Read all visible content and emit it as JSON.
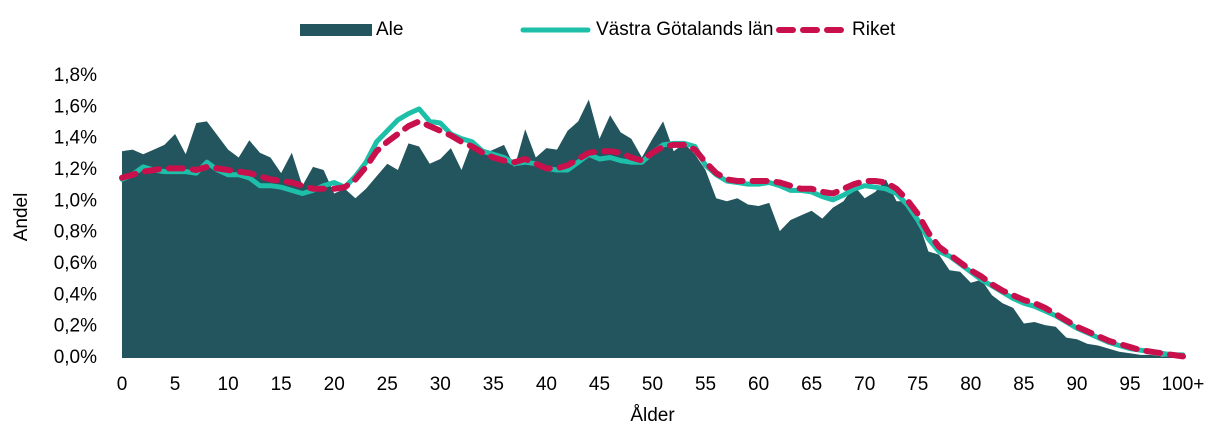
{
  "chart_data": {
    "type": "line",
    "x_label": "Ålder",
    "y_label": "Andel",
    "categories": [
      "0",
      null,
      null,
      null,
      null,
      "5",
      null,
      null,
      null,
      null,
      "10",
      null,
      null,
      null,
      null,
      "15",
      null,
      null,
      null,
      null,
      "20",
      null,
      null,
      null,
      null,
      "25",
      null,
      null,
      null,
      null,
      "30",
      null,
      null,
      null,
      null,
      "35",
      null,
      null,
      null,
      null,
      "40",
      null,
      null,
      null,
      null,
      "45",
      null,
      null,
      null,
      null,
      "50",
      null,
      null,
      null,
      null,
      "55",
      null,
      null,
      null,
      null,
      "60",
      null,
      null,
      null,
      null,
      "65",
      null,
      null,
      null,
      null,
      "70",
      null,
      null,
      null,
      null,
      "75",
      null,
      null,
      null,
      null,
      "80",
      null,
      null,
      null,
      null,
      "85",
      null,
      null,
      null,
      null,
      "90",
      null,
      null,
      null,
      null,
      "95",
      null,
      null,
      null,
      null,
      "100+"
    ],
    "ylim": [
      0,
      1.8
    ],
    "yticks": [
      {
        "value": 0,
        "label": "0,0%"
      },
      {
        "value": 0.2,
        "label": "0,2%"
      },
      {
        "value": 0.4,
        "label": "0,4%"
      },
      {
        "value": 0.6,
        "label": "0,6%"
      },
      {
        "value": 0.8,
        "label": "0,8%"
      },
      {
        "value": 1.0,
        "label": "1,0%"
      },
      {
        "value": 1.2,
        "label": "1,2%"
      },
      {
        "value": 1.4,
        "label": "1,4%"
      },
      {
        "value": 1.6,
        "label": "1,6%"
      },
      {
        "value": 1.8,
        "label": "1,8%"
      }
    ],
    "legend": "top",
    "series": [
      {
        "name": "Ale",
        "type": "area",
        "color": "#23555e",
        "values": [
          1.32,
          1.33,
          1.3,
          1.33,
          1.36,
          1.43,
          1.3,
          1.5,
          1.51,
          1.42,
          1.33,
          1.28,
          1.39,
          1.31,
          1.28,
          1.18,
          1.31,
          1.1,
          1.22,
          1.2,
          1.05,
          1.08,
          1.02,
          1.08,
          1.16,
          1.24,
          1.2,
          1.37,
          1.35,
          1.24,
          1.27,
          1.34,
          1.2,
          1.38,
          1.3,
          1.33,
          1.36,
          1.22,
          1.46,
          1.28,
          1.34,
          1.33,
          1.45,
          1.51,
          1.65,
          1.4,
          1.55,
          1.44,
          1.4,
          1.28,
          1.4,
          1.51,
          1.32,
          1.37,
          1.3,
          1.2,
          1.02,
          1.0,
          1.02,
          0.98,
          0.97,
          0.99,
          0.81,
          0.88,
          0.91,
          0.94,
          0.89,
          0.96,
          1.0,
          1.1,
          1.02,
          1.06,
          1.14,
          1.0,
          1.0,
          0.88,
          0.68,
          0.66,
          0.56,
          0.55,
          0.48,
          0.5,
          0.4,
          0.35,
          0.32,
          0.22,
          0.23,
          0.21,
          0.2,
          0.13,
          0.12,
          0.09,
          0.08,
          0.06,
          0.04,
          0.03,
          0.02,
          0.02,
          0.01,
          0.01,
          0.02
        ]
      },
      {
        "name": "Västra Götalands län",
        "type": "line",
        "color": "#1dbfa8",
        "values": [
          1.14,
          1.17,
          1.22,
          1.2,
          1.19,
          1.19,
          1.19,
          1.18,
          1.25,
          1.2,
          1.17,
          1.17,
          1.15,
          1.1,
          1.1,
          1.09,
          1.07,
          1.05,
          1.07,
          1.1,
          1.12,
          1.09,
          1.16,
          1.25,
          1.38,
          1.45,
          1.52,
          1.56,
          1.59,
          1.51,
          1.5,
          1.43,
          1.4,
          1.38,
          1.32,
          1.3,
          1.28,
          1.24,
          1.25,
          1.24,
          1.21,
          1.2,
          1.2,
          1.25,
          1.3,
          1.27,
          1.28,
          1.26,
          1.25,
          1.25,
          1.31,
          1.36,
          1.37,
          1.37,
          1.35,
          1.23,
          1.17,
          1.13,
          1.12,
          1.11,
          1.11,
          1.12,
          1.1,
          1.07,
          1.07,
          1.06,
          1.03,
          1.01,
          1.04,
          1.08,
          1.1,
          1.09,
          1.08,
          1.05,
          0.98,
          0.88,
          0.76,
          0.68,
          0.65,
          0.6,
          0.55,
          0.5,
          0.46,
          0.42,
          0.38,
          0.35,
          0.33,
          0.3,
          0.27,
          0.23,
          0.19,
          0.16,
          0.13,
          0.1,
          0.08,
          0.06,
          0.05,
          0.04,
          0.03,
          0.02,
          0.02
        ]
      },
      {
        "name": "Riket",
        "type": "line",
        "dashed": true,
        "color": "#c8104d",
        "values": [
          1.15,
          1.17,
          1.19,
          1.2,
          1.21,
          1.21,
          1.21,
          1.2,
          1.22,
          1.21,
          1.2,
          1.19,
          1.18,
          1.16,
          1.14,
          1.13,
          1.12,
          1.1,
          1.08,
          1.08,
          1.08,
          1.09,
          1.14,
          1.22,
          1.32,
          1.38,
          1.43,
          1.48,
          1.51,
          1.48,
          1.45,
          1.42,
          1.38,
          1.35,
          1.31,
          1.28,
          1.26,
          1.25,
          1.27,
          1.24,
          1.21,
          1.21,
          1.23,
          1.27,
          1.31,
          1.32,
          1.32,
          1.31,
          1.28,
          1.26,
          1.31,
          1.35,
          1.36,
          1.36,
          1.33,
          1.25,
          1.18,
          1.14,
          1.13,
          1.13,
          1.13,
          1.13,
          1.12,
          1.1,
          1.08,
          1.08,
          1.06,
          1.05,
          1.08,
          1.11,
          1.13,
          1.13,
          1.12,
          1.08,
          1.01,
          0.92,
          0.8,
          0.71,
          0.66,
          0.61,
          0.56,
          0.52,
          0.47,
          0.43,
          0.4,
          0.37,
          0.35,
          0.32,
          0.28,
          0.24,
          0.2,
          0.17,
          0.14,
          0.11,
          0.09,
          0.07,
          0.05,
          0.04,
          0.03,
          0.02,
          0.01
        ]
      }
    ]
  }
}
